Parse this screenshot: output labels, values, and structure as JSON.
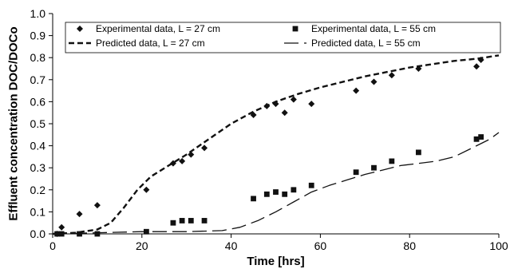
{
  "chart_data": {
    "type": "scatter",
    "title": "",
    "xlabel": "Time [hrs]",
    "ylabel": "Effluent concentration DOC/DOCo",
    "xlim": [
      0,
      100
    ],
    "ylim": [
      0,
      1
    ],
    "x_ticks": [
      "0",
      "20",
      "40",
      "60",
      "80",
      "100"
    ],
    "y_ticks": [
      "0.0",
      "0.1",
      "0.2",
      "0.3",
      "0.4",
      "0.5",
      "0.6",
      "0.7",
      "0.8",
      "0.9",
      "1.0"
    ],
    "grid": "none",
    "legend_position": "top",
    "series": [
      {
        "name": "Experimental data, L = 27 cm",
        "kind": "markers",
        "marker": "diamond",
        "color": "#111111",
        "points": [
          [
            1,
            0.0
          ],
          [
            2,
            0.03
          ],
          [
            6,
            0.09
          ],
          [
            10,
            0.13
          ],
          [
            21,
            0.2
          ],
          [
            27,
            0.32
          ],
          [
            29,
            0.33
          ],
          [
            31,
            0.36
          ],
          [
            34,
            0.39
          ],
          [
            45,
            0.54
          ],
          [
            48,
            0.58
          ],
          [
            50,
            0.59
          ],
          [
            52,
            0.55
          ],
          [
            54,
            0.61
          ],
          [
            58,
            0.59
          ],
          [
            68,
            0.65
          ],
          [
            72,
            0.69
          ],
          [
            76,
            0.72
          ],
          [
            82,
            0.75
          ],
          [
            95,
            0.76
          ],
          [
            96,
            0.79
          ]
        ]
      },
      {
        "name": "Experimental data, L = 55 cm",
        "kind": "markers",
        "marker": "square",
        "color": "#111111",
        "points": [
          [
            1,
            0.0
          ],
          [
            2,
            0.0
          ],
          [
            6,
            0.0
          ],
          [
            10,
            0.0
          ],
          [
            21,
            0.01
          ],
          [
            27,
            0.05
          ],
          [
            29,
            0.06
          ],
          [
            31,
            0.06
          ],
          [
            34,
            0.06
          ],
          [
            45,
            0.16
          ],
          [
            48,
            0.18
          ],
          [
            50,
            0.19
          ],
          [
            52,
            0.18
          ],
          [
            54,
            0.2
          ],
          [
            58,
            0.22
          ],
          [
            68,
            0.28
          ],
          [
            72,
            0.3
          ],
          [
            76,
            0.33
          ],
          [
            82,
            0.37
          ],
          [
            95,
            0.43
          ],
          [
            96,
            0.44
          ]
        ]
      },
      {
        "name": "Predicted data,     L = 27 cm",
        "kind": "line",
        "dash": "short",
        "color": "#111111",
        "points": [
          [
            0,
            0.0
          ],
          [
            5,
            0.005
          ],
          [
            10,
            0.02
          ],
          [
            13,
            0.05
          ],
          [
            16,
            0.12
          ],
          [
            19,
            0.2
          ],
          [
            22,
            0.26
          ],
          [
            26,
            0.31
          ],
          [
            30,
            0.36
          ],
          [
            35,
            0.43
          ],
          [
            40,
            0.5
          ],
          [
            45,
            0.555
          ],
          [
            50,
            0.6
          ],
          [
            55,
            0.635
          ],
          [
            60,
            0.665
          ],
          [
            65,
            0.69
          ],
          [
            70,
            0.715
          ],
          [
            75,
            0.735
          ],
          [
            80,
            0.755
          ],
          [
            85,
            0.77
          ],
          [
            90,
            0.785
          ],
          [
            95,
            0.795
          ],
          [
            100,
            0.81
          ]
        ]
      },
      {
        "name": "Predicted data,     L = 55 cm",
        "kind": "line",
        "dash": "long",
        "color": "#111111",
        "points": [
          [
            0,
            0.0
          ],
          [
            10,
            0.005
          ],
          [
            20,
            0.01
          ],
          [
            30,
            0.01
          ],
          [
            38,
            0.015
          ],
          [
            42,
            0.03
          ],
          [
            46,
            0.06
          ],
          [
            50,
            0.1
          ],
          [
            54,
            0.145
          ],
          [
            58,
            0.19
          ],
          [
            62,
            0.22
          ],
          [
            66,
            0.245
          ],
          [
            70,
            0.27
          ],
          [
            74,
            0.29
          ],
          [
            78,
            0.31
          ],
          [
            82,
            0.32
          ],
          [
            86,
            0.33
          ],
          [
            90,
            0.35
          ],
          [
            94,
            0.39
          ],
          [
            98,
            0.43
          ],
          [
            100,
            0.46
          ]
        ]
      }
    ]
  }
}
